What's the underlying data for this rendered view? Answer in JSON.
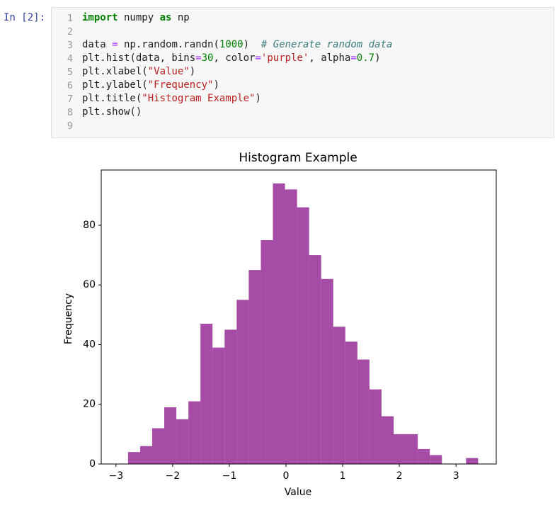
{
  "cell": {
    "prompt": "In [2]:",
    "line_numbers": [
      1,
      2,
      3,
      4,
      5,
      6,
      7,
      8,
      9
    ],
    "lines": [
      [
        "import",
        " numpy ",
        "as",
        " np"
      ],
      [],
      [
        "data ",
        "=",
        " np.random.randn(",
        "1000",
        ")  ",
        "# Generate random data"
      ],
      [
        "plt.hist(data, bins",
        "=",
        "30",
        ", color",
        "=",
        "'purple'",
        ", alpha",
        "=",
        "0.7",
        ")"
      ],
      [
        "plt.xlabel(",
        "\"Value\"",
        ")"
      ],
      [
        "plt.ylabel(",
        "\"Frequency\"",
        ")"
      ],
      [
        "plt.title(",
        "\"Histogram Example\"",
        ")"
      ],
      [
        "plt.show()"
      ],
      []
    ]
  },
  "chart_data": {
    "type": "histogram",
    "title": "Histogram Example",
    "x_label": "Value",
    "y_label": "Frequency",
    "bins": [
      -3.0,
      -2.787,
      -2.574,
      -2.361,
      -2.148,
      -1.935,
      -1.722,
      -1.509,
      -1.296,
      -1.083,
      -0.87,
      -0.657,
      -0.444,
      -0.231,
      -0.018,
      0.195,
      0.408,
      0.621,
      0.834,
      1.047,
      1.26,
      1.473,
      1.686,
      1.899,
      2.112,
      2.325,
      2.538,
      2.751,
      2.964,
      3.177,
      3.39
    ],
    "values": [
      0,
      4,
      6,
      12,
      19,
      15,
      21,
      47,
      39,
      45,
      55,
      65,
      75,
      94,
      92,
      86,
      70,
      62,
      46,
      41,
      35,
      25,
      16,
      10,
      10,
      5,
      3,
      0,
      0,
      2
    ],
    "color": "purple",
    "alpha": 0.7,
    "xlim": [
      -3.26,
      3.71
    ],
    "ylim": [
      0,
      98.5
    ],
    "xticks": [
      {
        "value": -3,
        "label": "−3"
      },
      {
        "value": -2,
        "label": "−2"
      },
      {
        "value": -1,
        "label": "−1"
      },
      0,
      1,
      2,
      3
    ],
    "yticks": [
      0,
      20,
      40,
      60,
      80
    ]
  }
}
